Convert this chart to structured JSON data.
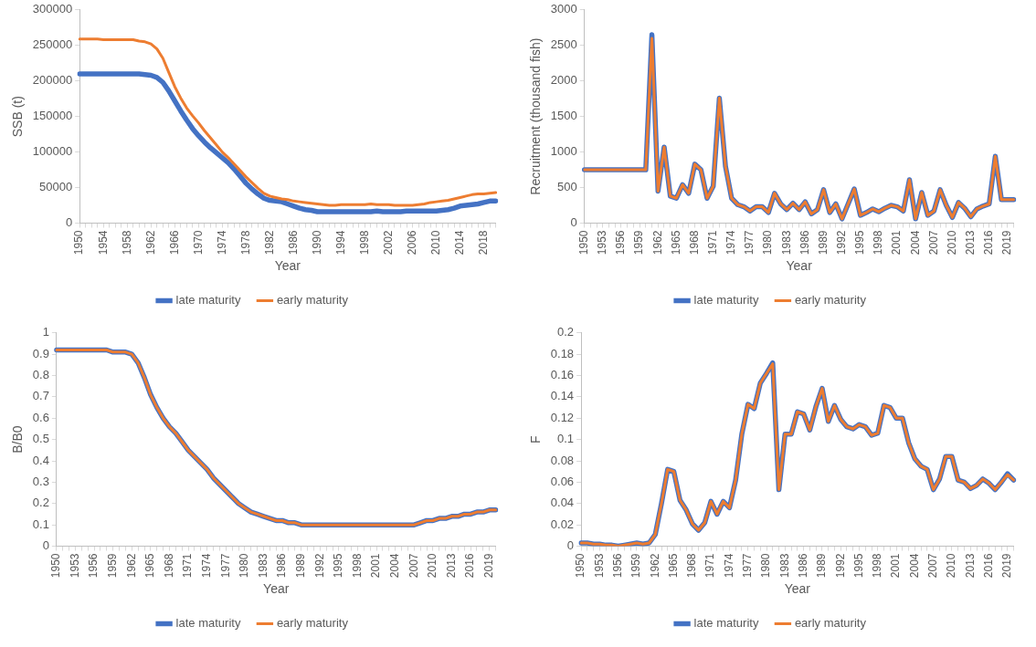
{
  "chart_data": [
    {
      "type": "line",
      "xlabel": "Year",
      "ylabel": "SSB (t)",
      "legend": "bottom",
      "grid": false,
      "ylim": [
        0,
        300000
      ],
      "yticks": [
        0,
        50000,
        100000,
        150000,
        200000,
        250000,
        300000
      ],
      "categories": [
        "1950",
        null,
        null,
        null,
        "1954",
        null,
        null,
        null,
        "1958",
        null,
        null,
        null,
        "1962",
        null,
        null,
        null,
        "1966",
        null,
        null,
        null,
        "1970",
        null,
        null,
        null,
        "1974",
        null,
        null,
        null,
        "1978",
        null,
        null,
        null,
        "1982",
        null,
        null,
        null,
        "1986",
        null,
        null,
        null,
        "1990",
        null,
        null,
        null,
        "1994",
        null,
        null,
        null,
        "1998",
        null,
        null,
        null,
        "2002",
        null,
        null,
        null,
        "2006",
        null,
        null,
        null,
        "2010",
        null,
        null,
        null,
        "2014",
        null,
        null,
        null,
        "2018",
        null,
        null
      ],
      "series": [
        {
          "name": "late maturity",
          "color": "#4472c4",
          "values": [
            210000,
            210000,
            210000,
            210000,
            210000,
            210000,
            210000,
            210000,
            210000,
            210000,
            210000,
            209000,
            208000,
            205000,
            198000,
            186000,
            172000,
            158000,
            145000,
            133000,
            123000,
            114000,
            106000,
            99000,
            92000,
            85000,
            76000,
            66000,
            56000,
            48000,
            41000,
            35000,
            32000,
            31000,
            30000,
            27000,
            24000,
            21000,
            19000,
            18000,
            16000,
            16000,
            16000,
            16000,
            16000,
            16000,
            16000,
            16000,
            16000,
            16000,
            17000,
            16000,
            16000,
            16000,
            16000,
            17000,
            17000,
            17000,
            17000,
            17000,
            17000,
            18000,
            19000,
            21000,
            24000,
            25000,
            26000,
            27000,
            29000,
            31000,
            31000
          ]
        },
        {
          "name": "early maturity",
          "color": "#ed7d31",
          "values": [
            259000,
            259000,
            259000,
            259000,
            258000,
            258000,
            258000,
            258000,
            258000,
            258000,
            256000,
            255000,
            252000,
            245000,
            232000,
            212000,
            192000,
            176000,
            162000,
            151000,
            141000,
            130000,
            120000,
            110000,
            100000,
            92000,
            83000,
            74000,
            65000,
            57000,
            49000,
            42000,
            38000,
            36000,
            34000,
            33000,
            31000,
            30000,
            29000,
            28000,
            27000,
            26000,
            25000,
            25000,
            26000,
            26000,
            26000,
            26000,
            26000,
            27000,
            26000,
            26000,
            26000,
            25000,
            25000,
            25000,
            25000,
            26000,
            27000,
            29000,
            30000,
            31000,
            32000,
            34000,
            36000,
            38000,
            40000,
            41000,
            41000,
            42000,
            43000
          ]
        }
      ]
    },
    {
      "type": "line",
      "xlabel": "Year",
      "ylabel": "Recruitment (thousand fish)",
      "legend": "bottom",
      "grid": false,
      "ylim": [
        0,
        3000
      ],
      "yticks": [
        0,
        500,
        1000,
        1500,
        2000,
        2500,
        3000
      ],
      "categories": [
        "1950",
        null,
        null,
        "1953",
        null,
        null,
        "1956",
        null,
        null,
        "1959",
        null,
        null,
        "1962",
        null,
        null,
        "1965",
        null,
        null,
        "1968",
        null,
        null,
        "1971",
        null,
        null,
        "1974",
        null,
        null,
        "1977",
        null,
        null,
        "1980",
        null,
        null,
        "1983",
        null,
        null,
        "1986",
        null,
        null,
        "1989",
        null,
        null,
        "1992",
        null,
        null,
        "1995",
        null,
        null,
        "1998",
        null,
        null,
        "2001",
        null,
        null,
        "2004",
        null,
        null,
        "2007",
        null,
        null,
        "2010",
        null,
        null,
        "2013",
        null,
        null,
        "2016",
        null,
        null,
        "2019",
        null
      ],
      "series": [
        {
          "name": "late maturity",
          "color": "#4472c4",
          "values": [
            750,
            750,
            750,
            750,
            750,
            750,
            750,
            750,
            750,
            750,
            750,
            2650,
            450,
            1070,
            380,
            350,
            540,
            420,
            830,
            750,
            350,
            520,
            1760,
            800,
            350,
            260,
            230,
            170,
            230,
            230,
            150,
            420,
            270,
            190,
            280,
            190,
            300,
            130,
            190,
            470,
            150,
            270,
            60,
            270,
            480,
            110,
            150,
            200,
            160,
            210,
            250,
            230,
            170,
            610,
            60,
            430,
            110,
            170,
            470,
            250,
            80,
            290,
            210,
            90,
            200,
            240,
            270,
            940,
            330,
            330,
            330
          ]
        },
        {
          "name": "early maturity",
          "color": "#ed7d31",
          "values": [
            750,
            750,
            750,
            750,
            750,
            750,
            750,
            750,
            750,
            750,
            750,
            2600,
            450,
            1070,
            380,
            350,
            540,
            420,
            830,
            750,
            350,
            520,
            1760,
            800,
            350,
            260,
            230,
            170,
            230,
            230,
            150,
            420,
            270,
            190,
            280,
            190,
            300,
            130,
            190,
            470,
            150,
            270,
            60,
            270,
            480,
            110,
            150,
            200,
            160,
            210,
            250,
            230,
            170,
            610,
            60,
            430,
            110,
            170,
            470,
            250,
            80,
            290,
            210,
            90,
            200,
            240,
            270,
            940,
            330,
            330,
            330
          ]
        }
      ]
    },
    {
      "type": "line",
      "xlabel": "Year",
      "ylabel": "B/B0",
      "legend": "bottom",
      "grid": false,
      "ylim": [
        0,
        1
      ],
      "yticks": [
        0,
        0.1,
        0.2,
        0.3,
        0.4,
        0.5,
        0.6,
        0.7,
        0.8,
        0.9,
        1
      ],
      "categories": [
        "1950",
        null,
        null,
        "1953",
        null,
        null,
        "1956",
        null,
        null,
        "1959",
        null,
        null,
        "1962",
        null,
        null,
        "1965",
        null,
        null,
        "1968",
        null,
        null,
        "1971",
        null,
        null,
        "1974",
        null,
        null,
        "1977",
        null,
        null,
        "1980",
        null,
        null,
        "1983",
        null,
        null,
        "1986",
        null,
        null,
        "1989",
        null,
        null,
        "1992",
        null,
        null,
        "1995",
        null,
        null,
        "1998",
        null,
        null,
        "2001",
        null,
        null,
        "2004",
        null,
        null,
        "2007",
        null,
        null,
        "2010",
        null,
        null,
        "2013",
        null,
        null,
        "2016",
        null,
        null,
        "2019",
        null
      ],
      "series": [
        {
          "name": "late maturity",
          "color": "#4472c4",
          "values": [
            0.92,
            0.92,
            0.92,
            0.92,
            0.92,
            0.92,
            0.92,
            0.92,
            0.92,
            0.91,
            0.91,
            0.91,
            0.9,
            0.86,
            0.79,
            0.71,
            0.65,
            0.6,
            0.56,
            0.53,
            0.49,
            0.45,
            0.42,
            0.39,
            0.36,
            0.32,
            0.29,
            0.26,
            0.23,
            0.2,
            0.18,
            0.16,
            0.15,
            0.14,
            0.13,
            0.12,
            0.12,
            0.11,
            0.11,
            0.1,
            0.1,
            0.1,
            0.1,
            0.1,
            0.1,
            0.1,
            0.1,
            0.1,
            0.1,
            0.1,
            0.1,
            0.1,
            0.1,
            0.1,
            0.1,
            0.1,
            0.1,
            0.1,
            0.11,
            0.12,
            0.12,
            0.13,
            0.13,
            0.14,
            0.14,
            0.15,
            0.15,
            0.16,
            0.16,
            0.17,
            0.17
          ]
        },
        {
          "name": "early maturity",
          "color": "#ed7d31",
          "values": [
            0.92,
            0.92,
            0.92,
            0.92,
            0.92,
            0.92,
            0.92,
            0.92,
            0.92,
            0.91,
            0.91,
            0.91,
            0.9,
            0.86,
            0.79,
            0.71,
            0.65,
            0.6,
            0.56,
            0.53,
            0.49,
            0.45,
            0.42,
            0.39,
            0.36,
            0.32,
            0.29,
            0.26,
            0.23,
            0.2,
            0.18,
            0.16,
            0.15,
            0.14,
            0.13,
            0.12,
            0.12,
            0.11,
            0.11,
            0.1,
            0.1,
            0.1,
            0.1,
            0.1,
            0.1,
            0.1,
            0.1,
            0.1,
            0.1,
            0.1,
            0.1,
            0.1,
            0.1,
            0.1,
            0.1,
            0.1,
            0.1,
            0.1,
            0.11,
            0.12,
            0.12,
            0.13,
            0.13,
            0.14,
            0.14,
            0.15,
            0.15,
            0.16,
            0.16,
            0.17,
            0.17
          ]
        }
      ]
    },
    {
      "type": "line",
      "xlabel": "Year",
      "ylabel": "F",
      "legend": "bottom",
      "grid": false,
      "ylim": [
        0,
        0.2
      ],
      "yticks": [
        0,
        0.02,
        0.04,
        0.06,
        0.08,
        0.1,
        0.12,
        0.14,
        0.16,
        0.18,
        0.2
      ],
      "categories": [
        "1950",
        null,
        null,
        "1953",
        null,
        null,
        "1956",
        null,
        null,
        "1959",
        null,
        null,
        "1962",
        null,
        null,
        "1965",
        null,
        null,
        "1968",
        null,
        null,
        "1971",
        null,
        null,
        "1974",
        null,
        null,
        "1977",
        null,
        null,
        "1980",
        null,
        null,
        "1983",
        null,
        null,
        "1986",
        null,
        null,
        "1989",
        null,
        null,
        "1992",
        null,
        null,
        "1995",
        null,
        null,
        "1998",
        null,
        null,
        "2001",
        null,
        null,
        "2004",
        null,
        null,
        "2007",
        null,
        null,
        "2010",
        null,
        null,
        "2013",
        null,
        null,
        "2016",
        null,
        null,
        "2019",
        null
      ],
      "series": [
        {
          "name": "late maturity",
          "color": "#4472c4",
          "values": [
            0.003,
            0.003,
            0.002,
            0.002,
            0.001,
            0.001,
            0,
            0.001,
            0.002,
            0.003,
            0.002,
            0.003,
            0.011,
            0.04,
            0.072,
            0.07,
            0.043,
            0.034,
            0.021,
            0.015,
            0.022,
            0.042,
            0.03,
            0.042,
            0.036,
            0.062,
            0.105,
            0.133,
            0.129,
            0.153,
            0.162,
            0.172,
            0.053,
            0.105,
            0.105,
            0.126,
            0.124,
            0.109,
            0.131,
            0.148,
            0.117,
            0.132,
            0.119,
            0.112,
            0.11,
            0.114,
            0.112,
            0.104,
            0.106,
            0.132,
            0.13,
            0.12,
            0.12,
            0.097,
            0.082,
            0.075,
            0.072,
            0.053,
            0.063,
            0.084,
            0.084,
            0.062,
            0.06,
            0.054,
            0.057,
            0.063,
            0.059,
            0.053,
            0.06,
            0.068,
            0.062
          ]
        },
        {
          "name": "early maturity",
          "color": "#ed7d31",
          "values": [
            0.003,
            0.003,
            0.002,
            0.002,
            0.001,
            0.001,
            0,
            0.001,
            0.002,
            0.003,
            0.002,
            0.003,
            0.011,
            0.04,
            0.072,
            0.07,
            0.043,
            0.034,
            0.021,
            0.015,
            0.022,
            0.042,
            0.03,
            0.042,
            0.036,
            0.062,
            0.105,
            0.133,
            0.129,
            0.153,
            0.162,
            0.171,
            0.053,
            0.105,
            0.105,
            0.126,
            0.124,
            0.109,
            0.131,
            0.148,
            0.117,
            0.132,
            0.119,
            0.112,
            0.11,
            0.114,
            0.112,
            0.104,
            0.106,
            0.132,
            0.13,
            0.12,
            0.12,
            0.097,
            0.082,
            0.075,
            0.072,
            0.053,
            0.063,
            0.084,
            0.084,
            0.062,
            0.06,
            0.054,
            0.057,
            0.063,
            0.059,
            0.053,
            0.06,
            0.067,
            0.062
          ]
        }
      ]
    }
  ]
}
